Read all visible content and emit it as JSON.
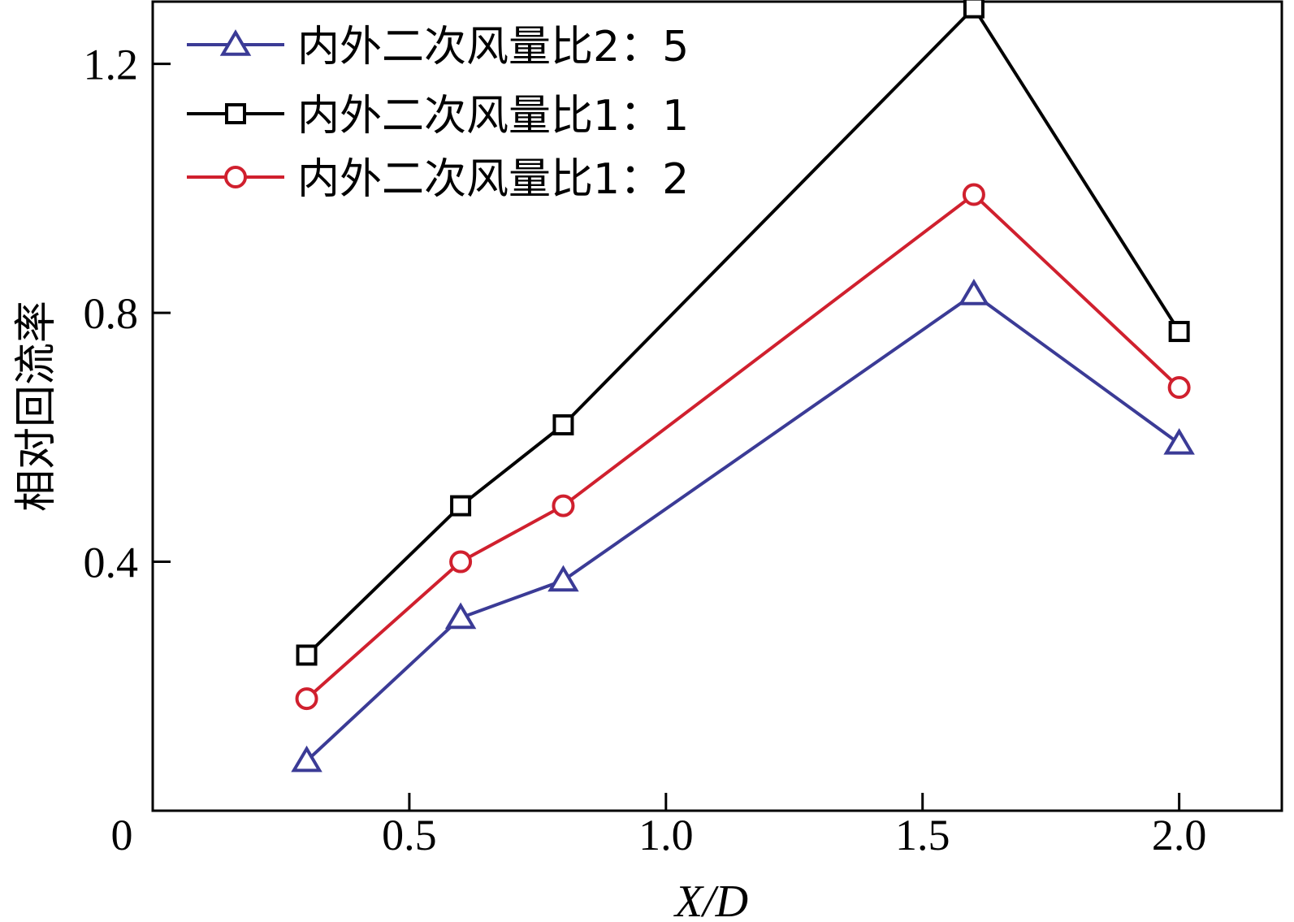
{
  "chart_data": {
    "type": "line",
    "title": "",
    "xlabel": "X/D",
    "ylabel": "相对回流率",
    "xlim": [
      0,
      2.2
    ],
    "ylim": [
      0,
      1.3
    ],
    "x_ticks": [
      {
        "value": 0,
        "label": "0"
      },
      {
        "value": 0.5,
        "label": "0.5"
      },
      {
        "value": 1.0,
        "label": "1.0"
      },
      {
        "value": 1.5,
        "label": "1.5"
      },
      {
        "value": 2.0,
        "label": "2.0"
      }
    ],
    "y_ticks": [
      {
        "value": 0.4,
        "label": "0.4"
      },
      {
        "value": 0.8,
        "label": "0.8"
      },
      {
        "value": 1.2,
        "label": "1.2"
      }
    ],
    "grid": false,
    "legend_position": "top-left",
    "x": [
      0.3,
      0.6,
      0.8,
      1.6,
      2.0
    ],
    "series": [
      {
        "name": "内外二次风量比2：5",
        "marker": "triangle",
        "color": "#3b3b96",
        "values": [
          0.08,
          0.31,
          0.37,
          0.83,
          0.59
        ]
      },
      {
        "name": "内外二次风量比1：1",
        "marker": "square",
        "color": "#000000",
        "values": [
          0.25,
          0.49,
          0.62,
          1.29,
          0.77
        ]
      },
      {
        "name": "内外二次风量比1：2",
        "marker": "circle",
        "color": "#d0202e",
        "values": [
          0.18,
          0.4,
          0.49,
          0.99,
          0.68
        ]
      }
    ]
  }
}
